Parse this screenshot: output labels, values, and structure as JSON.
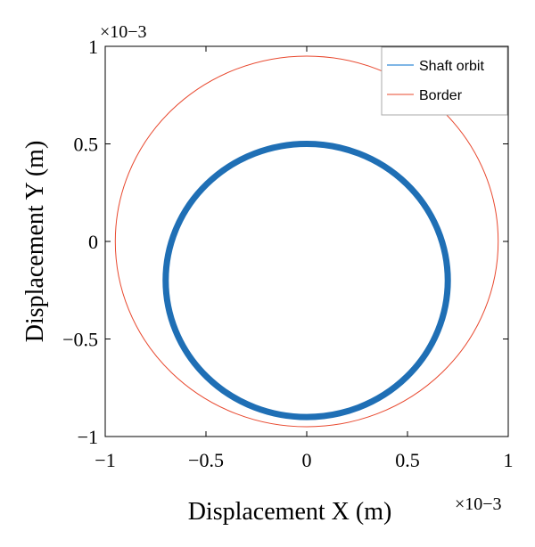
{
  "chart_data": {
    "type": "line",
    "title": "",
    "xlabel": "Displacement X (m)",
    "ylabel": "Displacement Y (m)",
    "x_multiplier_label": "×10−3",
    "y_multiplier_label": "×10−3",
    "xlim": [
      -1,
      1
    ],
    "ylim": [
      -1,
      1
    ],
    "x_ticks": [
      -1,
      -0.5,
      0,
      0.5,
      1
    ],
    "y_ticks": [
      -1,
      -0.5,
      0,
      0.5,
      1
    ],
    "x_tick_labels": [
      "−1",
      "−0.5",
      "0",
      "0.5",
      "1"
    ],
    "y_tick_labels": [
      "−1",
      "−0.5",
      "0",
      "0.5",
      "1"
    ],
    "grid": false,
    "legend_position": "top-right",
    "units_scale": "1e-3 m",
    "series": [
      {
        "name": "Shaft orbit",
        "color": "#1f6fb5",
        "shape": "ellipse",
        "center": [
          0,
          -0.2
        ],
        "radius_x": 0.7,
        "radius_y": 0.7
      },
      {
        "name": "Border",
        "color": "#e8482e",
        "shape": "circle",
        "center": [
          0,
          0
        ],
        "radius_x": 0.95,
        "radius_y": 0.95
      }
    ]
  }
}
